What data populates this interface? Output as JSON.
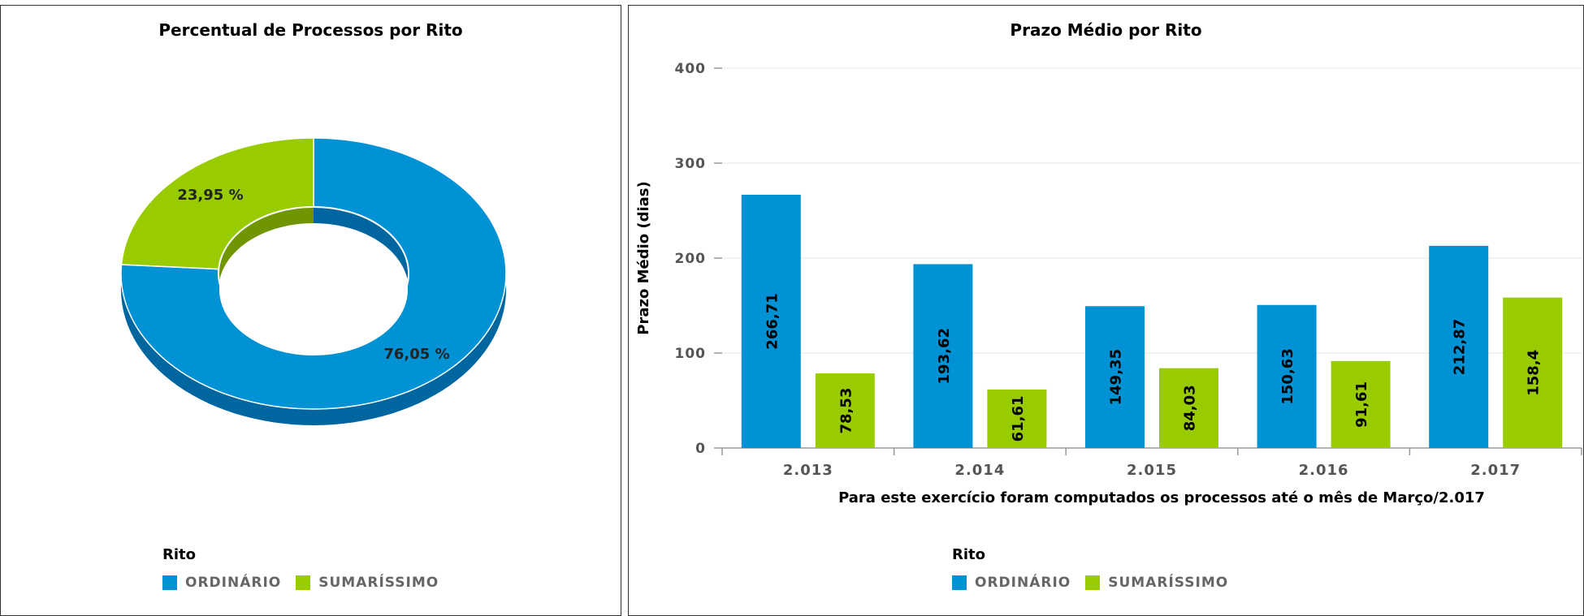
{
  "colors": {
    "ordinario": "#0192d5",
    "sumarissimo": "#99cc00",
    "ordinario_dark": "#0066a0",
    "sumarissimo_dark": "#6f9600"
  },
  "pie": {
    "title": "Percentual de Processos por Rito",
    "legend_title": "Rito",
    "legend": [
      "ORDINÁRIO",
      "SUMARÍSSIMO"
    ]
  },
  "bars": {
    "title": "Prazo Médio por Rito",
    "legend_title": "Rito",
    "legend": [
      "ORDINÁRIO",
      "SUMARÍSSIMO"
    ]
  },
  "chart_data": [
    {
      "type": "pie",
      "title": "Percentual de Processos por Rito",
      "variant": "donut-3d",
      "slices": [
        {
          "name": "ORDINÁRIO",
          "value": 76.05,
          "label": "76,05 %"
        },
        {
          "name": "SUMARÍSSIMO",
          "value": 23.95,
          "label": "23,95 %"
        }
      ],
      "legend_title": "Rito",
      "legend_placement": "bottom-left"
    },
    {
      "type": "bar",
      "title": "Prazo Médio por Rito",
      "categories": [
        "2.013",
        "2.014",
        "2.015",
        "2.016",
        "2.017"
      ],
      "series": [
        {
          "name": "ORDINÁRIO",
          "values": [
            266.71,
            193.62,
            149.35,
            150.63,
            212.87
          ],
          "labels": [
            "266,71",
            "193,62",
            "149,35",
            "150,63",
            "212,87"
          ]
        },
        {
          "name": "SUMARÍSSIMO",
          "values": [
            78.53,
            61.61,
            84.03,
            91.61,
            158.4
          ],
          "labels": [
            "78,53",
            "61,61",
            "84,03",
            "91,61",
            "158,4"
          ]
        }
      ],
      "ylabel": "Prazo Médio (dias)",
      "xlabel": "Para este exercício foram computados os processos até o mês de Março/2.017",
      "ylim": [
        0,
        400
      ],
      "yticks": [
        0,
        100,
        200,
        300,
        400
      ],
      "grid": true,
      "legend_title": "Rito",
      "legend_placement": "bottom"
    }
  ]
}
